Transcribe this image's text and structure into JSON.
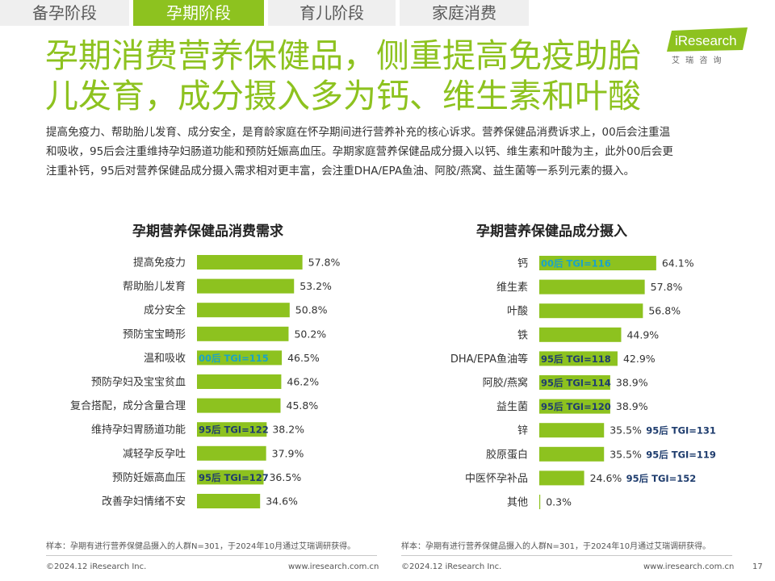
{
  "tabs": [
    {
      "label": "备孕阶段",
      "active": false
    },
    {
      "label": "孕期阶段",
      "active": true
    },
    {
      "label": "育儿阶段",
      "active": false
    },
    {
      "label": "家庭消费",
      "active": false
    }
  ],
  "logo": {
    "brand": "iResearch",
    "sub": "艾 瑞 咨 询"
  },
  "title": {
    "line1": "孕期消费营养保健品，侧重提高免疫助胎",
    "line2": "儿发育，成分摄入多为钙、维生素和叶酸"
  },
  "description": {
    "line1": "提高免疫力、帮助胎儿发育、成分安全，是育龄家庭在怀孕期间进行营养补充的核心诉求。营养保健品消费诉求上，00后会注重温",
    "line2": "和吸收，95后会注重维持孕妇肠道功能和预防妊娠高血压。孕期家庭营养保健品成分摄入以钙、维生素和叶酸为主，此外00后会更",
    "line3": "注重补钙，95后对营养保健品成分摄入需求相对更丰富，会注重DHA/EPA鱼油、阿胶/燕窝、益生菌等一系列元素的摄入。"
  },
  "colors": {
    "accent": "#8dc21f",
    "tag_00": "#1aa3c8",
    "tag_95": "#1f3d6e"
  },
  "chart_data": [
    {
      "type": "bar",
      "orientation": "horizontal",
      "title": "孕期营养保健品消费需求",
      "categories": [
        "提高免疫力",
        "帮助胎儿发育",
        "成分安全",
        "预防宝宝畸形",
        "温和吸收",
        "预防孕妇及宝宝贫血",
        "复合搭配，成分含量合理",
        "维持孕妇胃肠道功能",
        "减轻孕反孕吐",
        "预防妊娠高血压",
        "改善孕妇情绪不安"
      ],
      "values": [
        57.8,
        53.2,
        50.8,
        50.2,
        46.5,
        46.2,
        45.8,
        38.2,
        37.9,
        36.5,
        34.6
      ],
      "value_labels": [
        "57.8%",
        "53.2%",
        "50.8%",
        "50.2%",
        "46.5%",
        "46.2%",
        "45.8%",
        "38.2%",
        "37.9%",
        "36.5%",
        "34.6%"
      ],
      "unit": "%",
      "xlim": [
        0,
        100
      ],
      "tags": [
        {
          "index": 4,
          "text": "00后 TGI=115",
          "group": "00",
          "placement": "inside"
        },
        {
          "index": 7,
          "text": "95后 TGI=122",
          "group": "95",
          "placement": "inside"
        },
        {
          "index": 9,
          "text": "95后 TGI=127",
          "group": "95",
          "placement": "inside"
        }
      ],
      "footnote": "样本：孕期有进行营养保健品摄入的人群N=301，于2024年10月通过艾瑞调研获得。"
    },
    {
      "type": "bar",
      "orientation": "horizontal",
      "title": "孕期营养保健品成分摄入",
      "categories": [
        "钙",
        "维生素",
        "叶酸",
        "铁",
        "DHA/EPA鱼油等",
        "阿胶/燕窝",
        "益生菌",
        "锌",
        "胶原蛋白",
        "中医怀孕补品",
        "其他"
      ],
      "values": [
        64.1,
        57.8,
        56.8,
        44.9,
        42.9,
        38.9,
        38.9,
        35.5,
        35.5,
        24.6,
        0.3
      ],
      "value_labels": [
        "64.1%",
        "57.8%",
        "56.8%",
        "44.9%",
        "42.9%",
        "38.9%",
        "38.9%",
        "35.5%",
        "35.5%",
        "24.6%",
        "0.3%"
      ],
      "unit": "%",
      "xlim": [
        0,
        100
      ],
      "tags": [
        {
          "index": 0,
          "text": "00后 TGI=116",
          "group": "00",
          "placement": "inside"
        },
        {
          "index": 4,
          "text": "95后 TGI=118",
          "group": "95",
          "placement": "inside"
        },
        {
          "index": 5,
          "text": "95后 TGI=114",
          "group": "95",
          "placement": "inside"
        },
        {
          "index": 6,
          "text": "95后 TGI=120",
          "group": "95",
          "placement": "inside"
        },
        {
          "index": 7,
          "text": "95后 TGI=131",
          "group": "95",
          "placement": "outside"
        },
        {
          "index": 8,
          "text": "95后 TGI=119",
          "group": "95",
          "placement": "outside"
        },
        {
          "index": 9,
          "text": "95后 TGI=152",
          "group": "95",
          "placement": "outside"
        }
      ],
      "footnote": "样本：孕期有进行营养保健品摄入的人群N=301，于2024年10月通过艾瑞调研获得。"
    }
  ],
  "footer": {
    "copyright": "©2024.12 iResearch Inc.",
    "website": "www.iresearch.com.cn",
    "page": "17"
  }
}
